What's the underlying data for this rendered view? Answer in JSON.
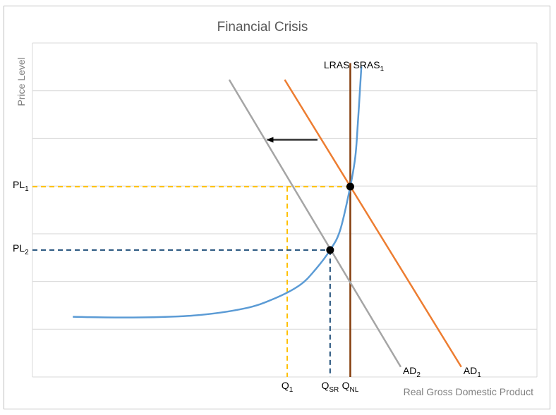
{
  "chart_data": {
    "type": "line",
    "title": "Financial Crisis",
    "xlabel": "Real Gross Domestic Product",
    "ylabel": "Price Level",
    "grid": true,
    "legend": "none",
    "axis_ranges": {
      "x": [
        0,
        100
      ],
      "y": [
        0,
        100
      ]
    },
    "series": [
      {
        "name": "LRAS",
        "color": "#843c0c",
        "x": [
          63,
          63
        ],
        "y": [
          0,
          94
        ]
      },
      {
        "name": "SRAS₁",
        "color": "#5b9bd5",
        "x": [
          8,
          20,
          32,
          42,
          48,
          53,
          56,
          59,
          61,
          63,
          64,
          64.5,
          65,
          65.2
        ],
        "y": [
          18,
          17.8,
          18.4,
          20.5,
          23.5,
          27.5,
          32,
          38,
          44,
          57,
          66,
          76,
          88,
          93
        ]
      },
      {
        "name": "AD₁",
        "color": "#ed7d31",
        "x": [
          50,
          85
        ],
        "y": [
          89,
          3
        ]
      },
      {
        "name": "AD₂",
        "color": "#a5a5a5",
        "x": [
          39,
          73
        ],
        "y": [
          89,
          3
        ]
      }
    ],
    "points": [
      {
        "name": "initial-equilibrium",
        "x": 63,
        "y": 57
      },
      {
        "name": "short-run-equilibrium",
        "x": 59,
        "y": 38
      }
    ],
    "guides": [
      {
        "name": "pl1-guide",
        "color": "#ffc000",
        "from": [
          0,
          57
        ],
        "to": [
          63,
          57
        ]
      },
      {
        "name": "q1-guide",
        "color": "#ffc000",
        "from": [
          50.5,
          57
        ],
        "to": [
          50.5,
          0
        ]
      },
      {
        "name": "qnl-guide",
        "color": "#ffc000",
        "from": [
          63,
          57
        ],
        "to": [
          63,
          0
        ]
      },
      {
        "name": "pl2-guide",
        "color": "#1f4e79",
        "from": [
          0,
          38
        ],
        "to": [
          59,
          38
        ]
      },
      {
        "name": "qsr-guide",
        "color": "#1f4e79",
        "from": [
          59,
          38
        ],
        "to": [
          59,
          0
        ]
      }
    ],
    "shift_arrow": {
      "from": [
        56.5,
        71
      ],
      "to": [
        46.5,
        71
      ]
    },
    "curve_labels": {
      "lras": "LRAS",
      "sras": {
        "base": "SRAS",
        "sub": "1"
      },
      "ad1": {
        "base": "AD",
        "sub": "1"
      },
      "ad2": {
        "base": "AD",
        "sub": "2"
      }
    },
    "y_tick_labels": [
      {
        "base": "PL",
        "sub": "1",
        "y": 57
      },
      {
        "base": "PL",
        "sub": "2",
        "y": 38
      }
    ],
    "x_tick_labels": [
      {
        "base": "Q",
        "sub": "1",
        "x": 50.5
      },
      {
        "base": "Q",
        "sub": "SR",
        "x": 59
      },
      {
        "base": "Q",
        "sub": "NL",
        "x": 63
      }
    ]
  }
}
